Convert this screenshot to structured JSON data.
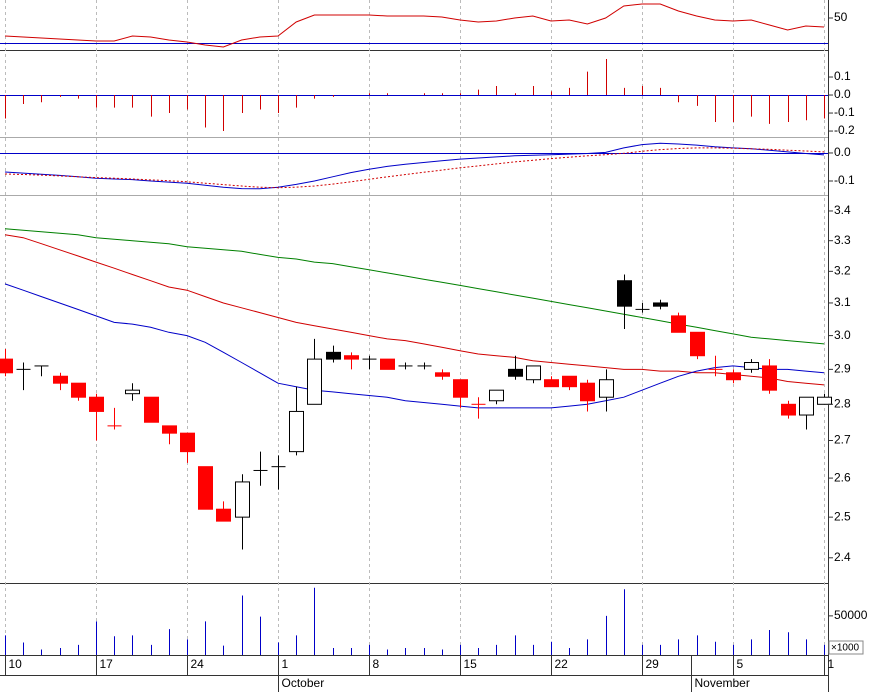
{
  "chart_data": [
    {
      "type": "line",
      "xlim": [
        -0.275,
        45.22
      ],
      "ylim": [
        24.4,
        64.4
      ],
      "yticks": [
        50
      ],
      "hlines": [
        30
      ],
      "hline_color": "#0000c8",
      "series": [
        {
          "color": "#d00000",
          "dash": "none",
          "values": [
            35.6,
            34.8,
            34,
            33.2,
            32.4,
            31.6,
            31.6,
            35.6,
            34.8,
            32.4,
            30.8,
            28.4,
            26.8,
            32.4,
            34.8,
            35.6,
            46.8,
            52.4,
            52.4,
            52.4,
            52.4,
            51.6,
            51.6,
            51.6,
            50.8,
            48.4,
            46.8,
            47.6,
            50,
            51.6,
            47.6,
            48.4,
            45.2,
            50,
            59.6,
            61.2,
            61.2,
            55.6,
            51.6,
            48.4,
            47.6,
            48.4,
            44.4,
            40.4,
            43.6,
            42.8
          ]
        }
      ]
    },
    {
      "type": "bar",
      "xlim": [
        -0.275,
        45.22
      ],
      "ylim": [
        -0.233,
        0.25
      ],
      "yticks": [
        0.1,
        {
          "value": 0,
          "label": "0.0"
        },
        -0.1,
        -0.2
      ],
      "hlines": [
        0
      ],
      "hline_color": "#0000c8",
      "color": "#d00000",
      "values": [
        -0.13,
        -0.05,
        -0.04,
        -0.01,
        -0.02,
        -0.07,
        -0.07,
        -0.07,
        -0.12,
        -0.1,
        -0.08,
        -0.18,
        -0.2,
        -0.1,
        -0.08,
        -0.1,
        -0.07,
        -0.02,
        -0.01,
        0,
        0.01,
        0.01,
        0,
        0.01,
        0.01,
        0.01,
        0.03,
        0.05,
        0.01,
        0.05,
        0.02,
        0.04,
        0.13,
        0.2,
        0.04,
        0.05,
        0.04,
        -0.04,
        -0.06,
        -0.15,
        -0.15,
        -0.12,
        -0.16,
        -0.15,
        -0.14,
        -0.13
      ]
    },
    {
      "type": "line",
      "xlim": [
        -0.275,
        45.22
      ],
      "ylim": [
        -0.15,
        0.057
      ],
      "yticks": [
        {
          "value": 0,
          "label": "0.0"
        },
        -0.1
      ],
      "hlines": [
        0
      ],
      "hline_color": "#0000c8",
      "series": [
        {
          "color": "#0000c8",
          "dash": "none",
          "values": [
            -0.068,
            -0.072,
            -0.076,
            -0.08,
            -0.085,
            -0.09,
            -0.093,
            -0.095,
            -0.1,
            -0.104,
            -0.108,
            -0.115,
            -0.122,
            -0.127,
            -0.128,
            -0.122,
            -0.112,
            -0.1,
            -0.085,
            -0.07,
            -0.058,
            -0.048,
            -0.04,
            -0.034,
            -0.028,
            -0.022,
            -0.018,
            -0.014,
            -0.01,
            -0.008,
            -0.006,
            -0.004,
            -0.002,
            0.002,
            0.018,
            0.03,
            0.035,
            0.032,
            0.028,
            0.022,
            0.018,
            0.015,
            0.01,
            0.004,
            -0.002,
            -0.007
          ]
        },
        {
          "color": "#d00000",
          "dash": "2 2",
          "values": [
            -0.075,
            -0.077,
            -0.079,
            -0.082,
            -0.085,
            -0.088,
            -0.09,
            -0.093,
            -0.096,
            -0.099,
            -0.103,
            -0.108,
            -0.113,
            -0.118,
            -0.122,
            -0.124,
            -0.122,
            -0.118,
            -0.111,
            -0.103,
            -0.094,
            -0.085,
            -0.077,
            -0.069,
            -0.061,
            -0.053,
            -0.046,
            -0.039,
            -0.032,
            -0.026,
            -0.02,
            -0.015,
            -0.01,
            -0.006,
            -0.001,
            0.006,
            0.012,
            0.016,
            0.018,
            0.018,
            0.017,
            0.015,
            0.013,
            0.01,
            0.007,
            0.004
          ]
        }
      ]
    },
    {
      "type": "candlestick",
      "log": true,
      "xlim": [
        -0.275,
        45.22
      ],
      "ylim": [
        2.34,
        3.455
      ],
      "yticks": [
        3.4,
        3.3,
        3.2,
        3.1,
        {
          "value": 3,
          "label": "3.0"
        },
        2.9,
        2.8,
        2.7,
        2.6,
        2.5,
        2.4
      ],
      "open": [
        2.93,
        2.9,
        2.91,
        2.88,
        2.86,
        2.82,
        2.74,
        2.83,
        2.82,
        2.74,
        2.72,
        2.63,
        2.52,
        2.5,
        2.62,
        2.63,
        2.67,
        2.8,
        2.95,
        2.94,
        2.93,
        2.93,
        2.91,
        2.91,
        2.89,
        2.87,
        2.8,
        2.81,
        2.9,
        2.87,
        2.87,
        2.88,
        2.86,
        2.82,
        3.17,
        3.08,
        3.1,
        3.06,
        3.01,
        2.9,
        2.89,
        2.9,
        2.91,
        2.8,
        2.77,
        2.8
      ],
      "high": [
        2.96,
        2.92,
        2.91,
        2.89,
        2.86,
        2.83,
        2.79,
        2.86,
        2.82,
        2.74,
        2.72,
        2.63,
        2.54,
        2.61,
        2.67,
        2.66,
        2.85,
        2.99,
        2.97,
        2.95,
        2.94,
        2.93,
        2.92,
        2.92,
        2.9,
        2.87,
        2.82,
        2.84,
        2.94,
        2.91,
        2.88,
        2.88,
        2.87,
        2.9,
        3.19,
        3.1,
        3.11,
        3.07,
        3.01,
        2.94,
        2.9,
        2.93,
        2.93,
        2.81,
        2.82,
        2.83
      ],
      "low": [
        2.88,
        2.84,
        2.88,
        2.84,
        2.81,
        2.7,
        2.73,
        2.81,
        2.75,
        2.69,
        2.64,
        2.52,
        2.49,
        2.42,
        2.58,
        2.57,
        2.66,
        2.8,
        2.92,
        2.9,
        2.9,
        2.9,
        2.9,
        2.9,
        2.87,
        2.79,
        2.76,
        2.8,
        2.87,
        2.86,
        2.85,
        2.84,
        2.78,
        2.78,
        3.02,
        3.07,
        3.08,
        3.01,
        2.93,
        2.88,
        2.86,
        2.89,
        2.83,
        2.76,
        2.73,
        2.8
      ],
      "close": [
        2.89,
        2.9,
        2.91,
        2.86,
        2.82,
        2.78,
        2.74,
        2.84,
        2.75,
        2.72,
        2.67,
        2.52,
        2.49,
        2.59,
        2.62,
        2.63,
        2.78,
        2.93,
        2.93,
        2.93,
        2.93,
        2.9,
        2.91,
        2.91,
        2.88,
        2.82,
        2.8,
        2.84,
        2.88,
        2.91,
        2.85,
        2.85,
        2.81,
        2.87,
        3.09,
        3.08,
        3.09,
        3.01,
        2.94,
        2.9,
        2.87,
        2.92,
        2.84,
        2.77,
        2.82,
        2.82
      ],
      "fills": [
        "#f00",
        "#000",
        "#000",
        "#f00",
        "#f00",
        "#f00",
        "#f00",
        "#fff",
        "#f00",
        "#f00",
        "#f00",
        "#f00",
        "#f00",
        "#fff",
        "#000",
        "#000",
        "#fff",
        "#fff",
        "#000",
        "#f00",
        "#000",
        "#f00",
        "#000",
        "#000",
        "#f00",
        "#f00",
        "#f00",
        "#fff",
        "#000",
        "#fff",
        "#f00",
        "#f00",
        "#f00",
        "#fff",
        "#000",
        "#000",
        "#000",
        "#f00",
        "#f00",
        "#f00",
        "#f00",
        "#fff",
        "#f00",
        "#f00",
        "#fff",
        "#fff"
      ],
      "series": [
        {
          "color": "#008000",
          "dash": "none",
          "values": [
            3.34,
            3.335,
            3.33,
            3.325,
            3.32,
            3.31,
            3.305,
            3.3,
            3.295,
            3.29,
            3.28,
            3.275,
            3.27,
            3.265,
            3.255,
            3.245,
            3.24,
            3.23,
            3.225,
            3.215,
            3.205,
            3.195,
            3.185,
            3.175,
            3.165,
            3.155,
            3.145,
            3.135,
            3.125,
            3.115,
            3.105,
            3.095,
            3.085,
            3.075,
            3.065,
            3.055,
            3.045,
            3.035,
            3.025,
            3.015,
            3.005,
            2.995,
            2.99,
            2.985,
            2.98,
            2.975
          ]
        },
        {
          "color": "#d00000",
          "dash": "none",
          "values": [
            3.32,
            3.31,
            3.29,
            3.27,
            3.25,
            3.23,
            3.21,
            3.19,
            3.17,
            3.15,
            3.14,
            3.12,
            3.1,
            3.085,
            3.07,
            3.055,
            3.04,
            3.03,
            3.02,
            3.01,
            3,
            2.99,
            2.985,
            2.975,
            2.965,
            2.955,
            2.945,
            2.94,
            2.935,
            2.925,
            2.92,
            2.915,
            2.91,
            2.905,
            2.9,
            2.9,
            2.895,
            2.895,
            2.89,
            2.89,
            2.885,
            2.88,
            2.875,
            2.865,
            2.86,
            2.855
          ]
        },
        {
          "color": "#0000c8",
          "dash": "none",
          "values": [
            3.16,
            3.14,
            3.12,
            3.1,
            3.08,
            3.06,
            3.04,
            3.035,
            3.025,
            3.01,
            3,
            2.98,
            2.95,
            2.92,
            2.89,
            2.86,
            2.85,
            2.84,
            2.835,
            2.83,
            2.825,
            2.82,
            2.81,
            2.805,
            2.8,
            2.795,
            2.79,
            2.79,
            2.79,
            2.79,
            2.79,
            2.795,
            2.8,
            2.81,
            2.82,
            2.84,
            2.86,
            2.88,
            2.895,
            2.905,
            2.91,
            2.905,
            2.9,
            2.9,
            2.895,
            2.89
          ]
        }
      ]
    },
    {
      "type": "bar",
      "xlim": [
        -0.275,
        45.22
      ],
      "ylim": [
        0,
        92000
      ],
      "yticks": [
        50000
      ],
      "y_unit_label": "×1000",
      "color": "#0000c8",
      "values": [
        25000,
        16000,
        7000,
        9000,
        13000,
        43000,
        24000,
        25000,
        13000,
        33000,
        20000,
        43000,
        12000,
        76000,
        49000,
        16000,
        25000,
        86000,
        9000,
        9000,
        13000,
        7000,
        9000,
        9000,
        7000,
        13000,
        9000,
        13000,
        25000,
        13000,
        17000,
        9000,
        20000,
        50000,
        84000,
        13000,
        13000,
        20000,
        25000,
        17000,
        13000,
        20000,
        32000,
        29000,
        20000,
        13000
      ],
      "xticks": [
        {
          "value": 0,
          "label": "10"
        },
        {
          "value": 5,
          "label": "17"
        },
        {
          "value": 10,
          "label": "24"
        },
        {
          "value": 15,
          "label": "1"
        },
        {
          "value": 20,
          "label": "8"
        },
        {
          "value": 25,
          "label": "15"
        },
        {
          "value": 30,
          "label": "22"
        },
        {
          "value": 35,
          "label": "29"
        },
        {
          "value": 40,
          "label": "5"
        },
        {
          "value": 45,
          "label": "1"
        }
      ],
      "month_ticks": [
        {
          "value": 15,
          "label": "October"
        },
        {
          "value": 37.7,
          "label": "November"
        }
      ]
    }
  ]
}
